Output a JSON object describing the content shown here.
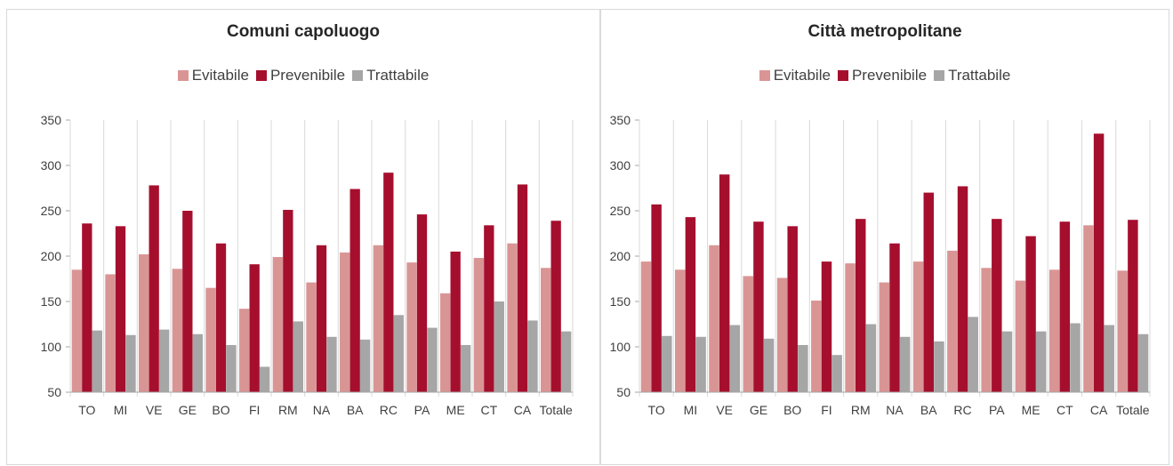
{
  "colors": {
    "evitabile": "#d99594",
    "prevenibile": "#a50f2d",
    "trattabile": "#a6a6a6",
    "axis": "#a6a6a6",
    "text": "#404040"
  },
  "chart_data": [
    {
      "type": "bar",
      "title": "Comuni capoluogo",
      "categories": [
        "TO",
        "MI",
        "VE",
        "GE",
        "BO",
        "FI",
        "RM",
        "NA",
        "BA",
        "RC",
        "PA",
        "ME",
        "CT",
        "CA",
        "Totale"
      ],
      "series": [
        {
          "name": "Evitabile",
          "values": [
            185,
            180,
            202,
            186,
            165,
            142,
            199,
            171,
            204,
            212,
            193,
            159,
            198,
            214,
            187
          ]
        },
        {
          "name": "Prevenibile",
          "values": [
            236,
            233,
            278,
            250,
            214,
            191,
            251,
            212,
            274,
            292,
            246,
            205,
            234,
            279,
            239
          ]
        },
        {
          "name": "Trattabile",
          "values": [
            118,
            113,
            119,
            114,
            102,
            78,
            128,
            111,
            108,
            135,
            121,
            102,
            150,
            129,
            117
          ]
        }
      ],
      "ylim": [
        50,
        350
      ],
      "yticks": [
        50,
        100,
        150,
        200,
        250,
        300,
        350
      ],
      "legend": "top-center",
      "grid": false
    },
    {
      "type": "bar",
      "title": "Città metropolitane",
      "categories": [
        "TO",
        "MI",
        "VE",
        "GE",
        "BO",
        "FI",
        "RM",
        "NA",
        "BA",
        "RC",
        "PA",
        "ME",
        "CT",
        "CA",
        "Totale"
      ],
      "series": [
        {
          "name": "Evitabile",
          "values": [
            194,
            185,
            212,
            178,
            176,
            151,
            192,
            171,
            194,
            206,
            187,
            173,
            185,
            234,
            184
          ]
        },
        {
          "name": "Prevenibile",
          "values": [
            257,
            243,
            290,
            238,
            233,
            194,
            241,
            214,
            270,
            277,
            241,
            222,
            238,
            335,
            240
          ]
        },
        {
          "name": "Trattabile",
          "values": [
            112,
            111,
            124,
            109,
            102,
            91,
            125,
            111,
            106,
            133,
            117,
            117,
            126,
            124,
            114
          ]
        }
      ],
      "ylim": [
        50,
        350
      ],
      "yticks": [
        50,
        100,
        150,
        200,
        250,
        300,
        350
      ],
      "legend": "top-center",
      "grid": false
    }
  ]
}
